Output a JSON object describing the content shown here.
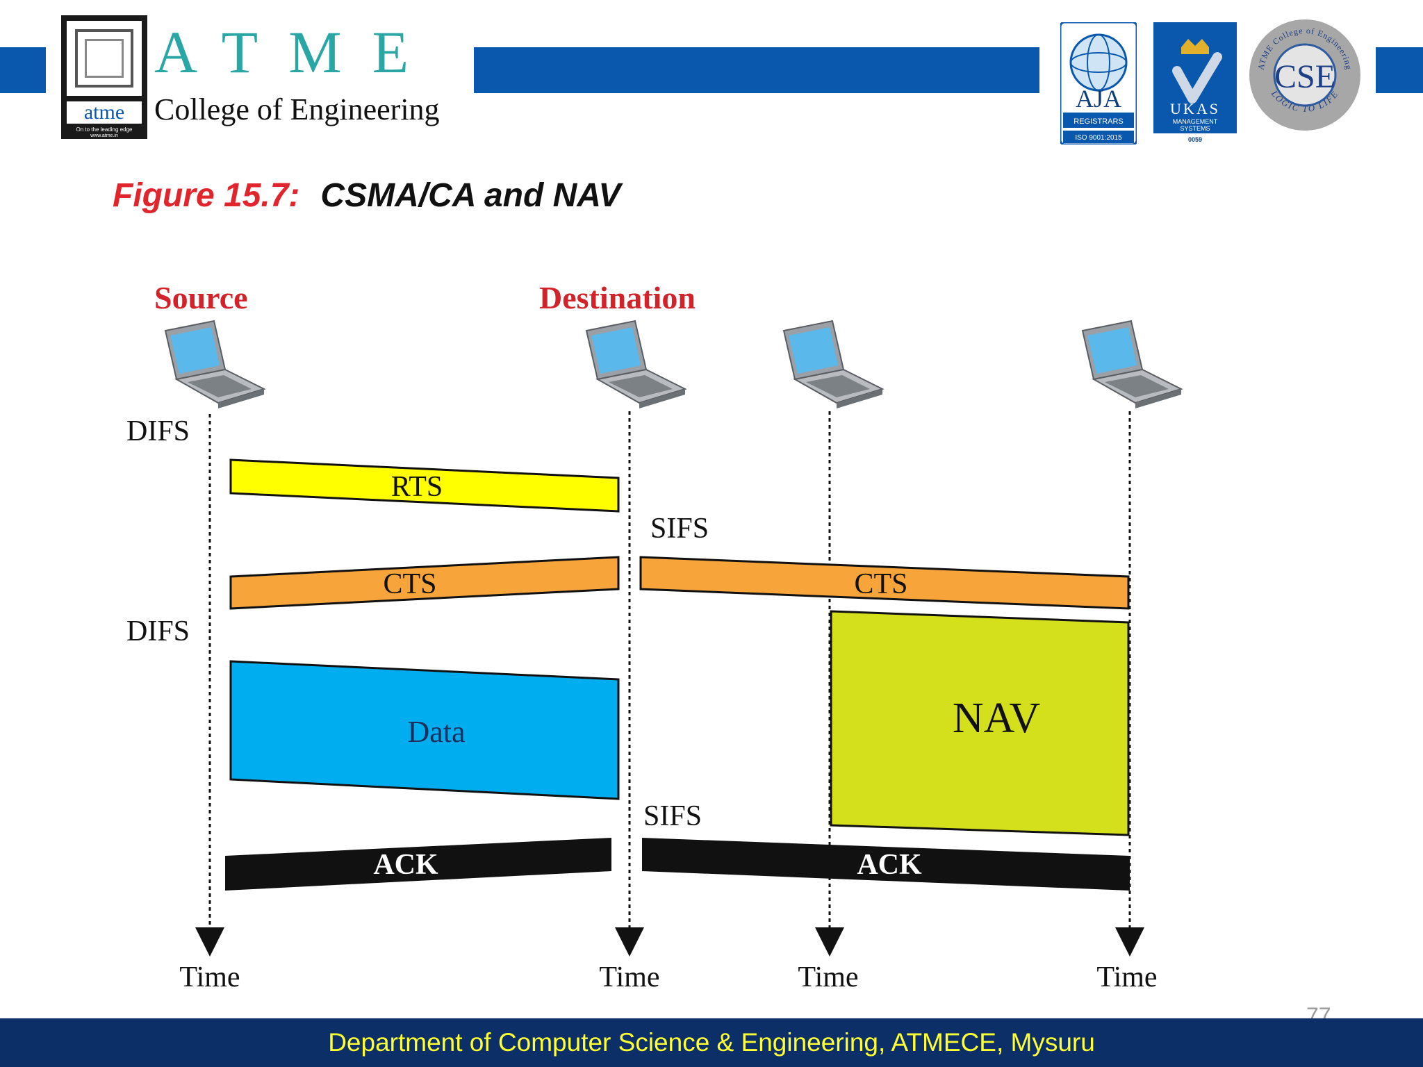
{
  "header": {
    "logo_word": "atme",
    "logo_tagline": "On to the leading edge",
    "logo_url": "www.atme.in",
    "brand_letters": "ATME",
    "college_name": "College of Engineering",
    "aja_label": "AJA",
    "aja_sub": "REGISTRARS",
    "aja_iso": "ISO 9001:2015",
    "ukas_label": "UKAS",
    "ukas_sub1": "MANAGEMENT",
    "ukas_sub2": "SYSTEMS",
    "ukas_code": "0059",
    "cse_label": "CSE",
    "cse_ring_top": "ATME College of Engineering",
    "cse_ring_bottom": "LOGIC TO LIFE",
    "colors": {
      "band": "#0a58ad",
      "brand": "#2aa7a5",
      "footer": "#0b2f66",
      "footer_text": "#ffff33"
    }
  },
  "figure": {
    "label": "Figure 15.7:",
    "title": "CSMA/CA and NAV"
  },
  "diagram": {
    "source_label": "Source",
    "destination_label": "Destination",
    "difs_label": "DIFS",
    "sifs_label": "SIFS",
    "time_label": "Time",
    "frames": {
      "rts": "RTS",
      "cts": "CTS",
      "data": "Data",
      "nav": "NAV",
      "ack": "ACK"
    },
    "colors": {
      "rts": "#ffff00",
      "cts": "#f7a53b",
      "data": "#00aeef",
      "nav": "#d4e01c",
      "ack": "#111111",
      "station_label": "#d2232a"
    },
    "icons": [
      "laptop-icon",
      "laptop-icon",
      "laptop-icon",
      "laptop-icon"
    ]
  },
  "footer": {
    "text": "Department of Computer Science & Engineering, ATMECE, Mysuru",
    "page_number": "77"
  }
}
